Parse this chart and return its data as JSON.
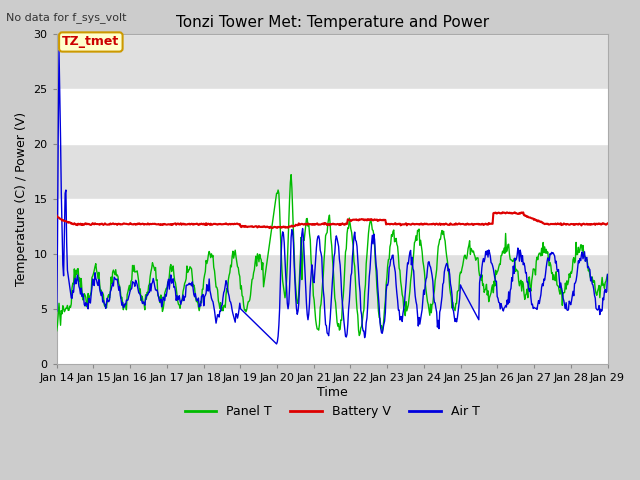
{
  "title": "Tonzi Tower Met: Temperature and Power",
  "top_left_text": "No data for f_sys_volt",
  "xlabel": "Time",
  "ylabel": "Temperature (C) / Power (V)",
  "ylim": [
    0,
    30
  ],
  "xlim": [
    0,
    15
  ],
  "x_tick_labels": [
    "Jan 14",
    "Jan 15",
    "Jan 16",
    "Jan 17",
    "Jan 18",
    "Jan 19",
    "Jan 20",
    "Jan 21",
    "Jan 22",
    "Jan 23",
    "Jan 24",
    "Jan 25",
    "Jan 26",
    "Jan 27",
    "Jan 28",
    "Jan 29"
  ],
  "legend_entries": [
    "Panel T",
    "Battery V",
    "Air T"
  ],
  "annotation_box_text": "TZ_tmet",
  "annotation_box_facecolor": "#ffffcc",
  "annotation_box_edgecolor": "#cc9900",
  "annotation_text_color": "#cc0000",
  "fig_facecolor": "#cccccc",
  "axes_facecolor": "#e8e8e8",
  "band_light_color": "#f2f2f2",
  "band_dark_color": "#e0e0e0",
  "grid_color": "#ffffff",
  "panel_t_color": "#00bb00",
  "battery_v_color": "#dd0000",
  "air_t_color": "#0000dd",
  "title_fontsize": 11,
  "tick_fontsize": 8,
  "ylabel_fontsize": 9,
  "xlabel_fontsize": 9,
  "legend_fontsize": 9
}
